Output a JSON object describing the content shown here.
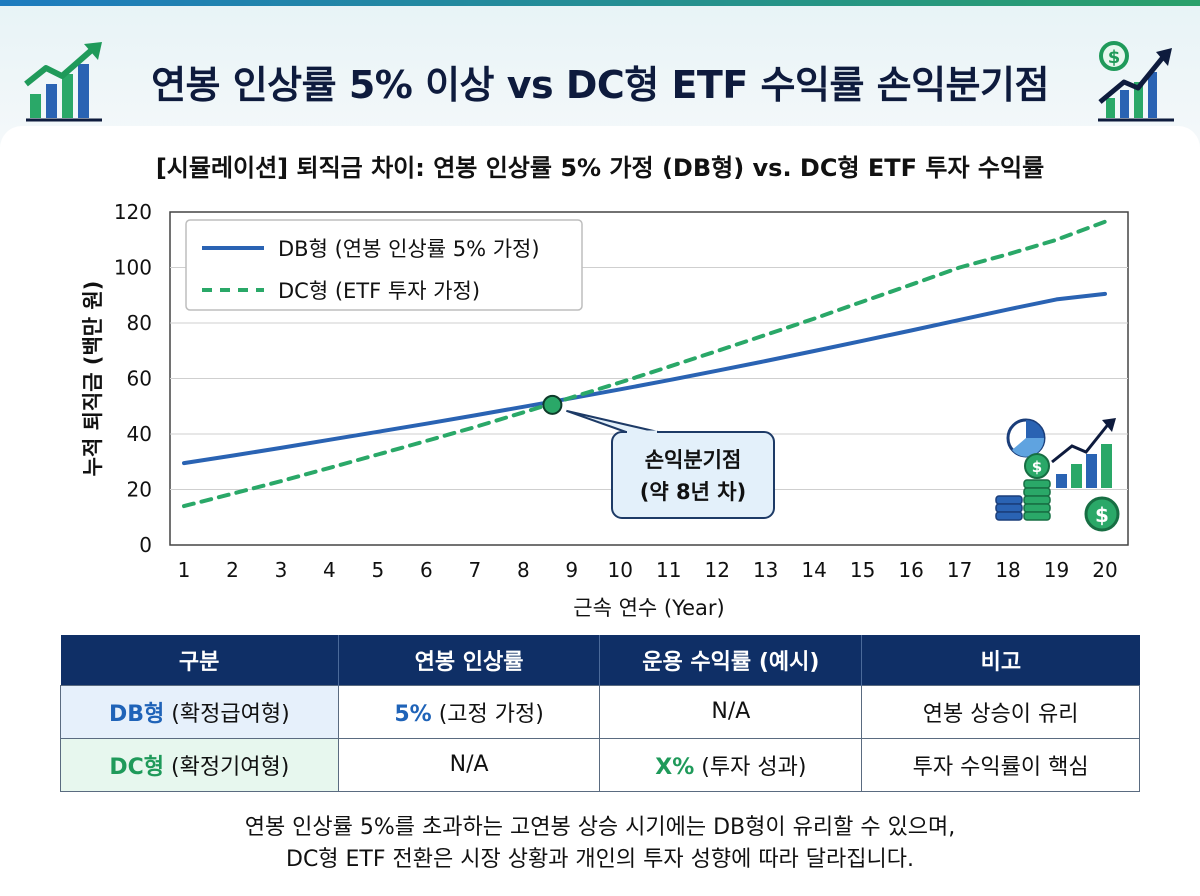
{
  "title": "연봉 인상률 5% 이상 vs DC형 ETF 수익률 손익분기점",
  "chart_data": {
    "type": "line",
    "title": "[시뮬레이션] 퇴직금 차이: 연봉 인상률 5% 가정 (DB형) vs. DC형 ETF 투자 수익률",
    "xlabel": "근속 연수 (Year)",
    "ylabel": "누적 퇴직금 (백만 원)",
    "xlim": [
      1,
      20
    ],
    "ylim": [
      0,
      120
    ],
    "x": [
      1,
      2,
      3,
      4,
      5,
      6,
      7,
      8,
      9,
      10,
      11,
      12,
      13,
      14,
      15,
      16,
      17,
      18,
      19,
      20
    ],
    "yticks": [
      0,
      20,
      40,
      60,
      80,
      100,
      120
    ],
    "grid": true,
    "legend": "top-left",
    "series": [
      {
        "name": "DB형 (연봉 인상률 5% 가정)",
        "style": "solid",
        "color": "#2a63b3",
        "values": [
          29.5,
          32.2,
          35.0,
          37.9,
          40.8,
          43.7,
          46.7,
          49.8,
          52.9,
          56.1,
          59.4,
          62.8,
          66.3,
          69.9,
          73.6,
          77.3,
          81.1,
          84.9,
          88.5,
          90.5
        ]
      },
      {
        "name": "DC형 (ETF 투자 가정)",
        "style": "dashed",
        "color": "#2aa868",
        "values": [
          14.0,
          18.5,
          23.0,
          27.8,
          32.6,
          37.5,
          42.5,
          47.8,
          53.2,
          58.6,
          64.2,
          69.9,
          75.7,
          81.6,
          87.7,
          93.8,
          100.0,
          104.8,
          110.0,
          116.5
        ]
      }
    ],
    "annotation": {
      "x": 8.6,
      "y": 50.5,
      "label_line1": "손익분기점",
      "label_line2": "(약 8년 차)"
    }
  },
  "table": {
    "headers": [
      "구분",
      "연봉 인상률",
      "운용 수익률 (예시)",
      "비고"
    ],
    "rows": [
      {
        "label_bold": "DB형",
        "label_rest": " (확정급여형)",
        "raise_bold": "5%",
        "raise_rest": " (고정 가정)",
        "return_bold": "",
        "return_rest": "N/A",
        "note": "연봉 상승이 유리"
      },
      {
        "label_bold": "DC형",
        "label_rest": " (확정기여형)",
        "raise_bold": "",
        "raise_rest": "N/A",
        "return_bold": "X%",
        "return_rest": " (투자 성과)",
        "note": "투자 수익률이 핵심"
      }
    ]
  },
  "footer": {
    "line1": "연봉 인상률 5%를 초과하는 고연봉 상승 시기에는 DB형이 유리할 수 있으며,",
    "line2": "DC형 ETF 전환은 시장 상황과 개인의 투자 성향에 따라 달라집니다."
  },
  "colors": {
    "navy": "#0f2f66",
    "db_blue": "#2a63b3",
    "dc_green": "#2aa868"
  }
}
